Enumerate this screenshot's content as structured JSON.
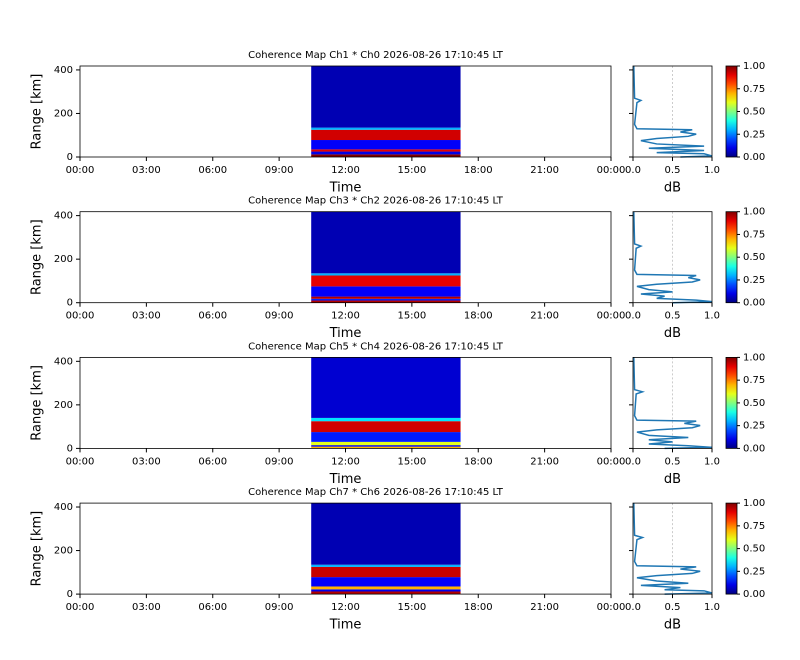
{
  "chart_data": [
    {
      "type": "heatmap",
      "title": "Coherence Map Ch1 * Ch0 2026-08-26 17:10:45 LT",
      "x_label": "Time",
      "y_label": "Range [km]",
      "xlim": [
        0,
        24
      ],
      "xticks": [
        {
          "value": 0,
          "label": "00:00"
        },
        {
          "value": 3,
          "label": "03:00"
        },
        {
          "value": 6,
          "label": "06:00"
        },
        {
          "value": 9,
          "label": "09:00"
        },
        {
          "value": 12,
          "label": "12:00"
        },
        {
          "value": 15,
          "label": "15:00"
        },
        {
          "value": 18,
          "label": "18:00"
        },
        {
          "value": 21,
          "label": "21:00"
        },
        {
          "value": 24,
          "label": "00:00"
        }
      ],
      "ylim": [
        0,
        418
      ],
      "yticks": [
        0,
        200,
        400
      ],
      "data_x": [
        10.45,
        17.2
      ],
      "bands": {
        "range": [
          0,
          12,
          25,
          35,
          78,
          125,
          135,
          418
        ],
        "values": [
          1.0,
          0.1,
          0.9,
          0.12,
          0.92,
          0.3,
          0.05
        ]
      },
      "colorbar": {
        "colormap": "jet",
        "lim": [
          0,
          1
        ],
        "ticks": [
          {
            "value": 0,
            "label": "0.00"
          },
          {
            "value": 0.25,
            "label": "0.25"
          },
          {
            "value": 0.5,
            "label": "0.50"
          },
          {
            "value": 0.75,
            "label": "0.75"
          },
          {
            "value": 1,
            "label": "1.00"
          }
        ]
      },
      "profile": {
        "x_label": "dB",
        "xlim": [
          0,
          1
        ],
        "xticks": [
          {
            "value": 0,
            "label": "0.0"
          },
          {
            "value": 0.5,
            "label": "0.5"
          },
          {
            "value": 1,
            "label": "1.0"
          }
        ],
        "vline": 0.5,
        "color": "#1f77b4",
        "range": [
          0,
          5,
          15,
          20,
          30,
          40,
          50,
          60,
          75,
          85,
          95,
          105,
          115,
          125,
          130,
          150,
          250,
          260,
          270,
          418
        ],
        "values": [
          0.6,
          1.0,
          0.9,
          0.3,
          0.9,
          0.2,
          0.9,
          0.3,
          0.1,
          0.3,
          0.7,
          0.8,
          0.6,
          0.75,
          0.05,
          0.02,
          0.05,
          0.1,
          0.02,
          0.01
        ]
      }
    },
    {
      "type": "heatmap",
      "title": "Coherence Map Ch3 * Ch2 2026-08-26 17:10:45 LT",
      "x_label": "Time",
      "y_label": "Range [km]",
      "xlim": [
        0,
        24
      ],
      "xticks": [
        {
          "value": 0,
          "label": "00:00"
        },
        {
          "value": 3,
          "label": "03:00"
        },
        {
          "value": 6,
          "label": "06:00"
        },
        {
          "value": 9,
          "label": "09:00"
        },
        {
          "value": 12,
          "label": "12:00"
        },
        {
          "value": 15,
          "label": "15:00"
        },
        {
          "value": 18,
          "label": "18:00"
        },
        {
          "value": 21,
          "label": "21:00"
        },
        {
          "value": 24,
          "label": "00:00"
        }
      ],
      "ylim": [
        0,
        418
      ],
      "yticks": [
        0,
        200,
        400
      ],
      "data_x": [
        10.45,
        17.2
      ],
      "bands": {
        "range": [
          0,
          10,
          18,
          28,
          75,
          125,
          135,
          418
        ],
        "values": [
          0.95,
          0.15,
          0.95,
          0.12,
          0.9,
          0.3,
          0.05
        ]
      },
      "colorbar": {
        "colormap": "jet",
        "lim": [
          0,
          1
        ],
        "ticks": [
          {
            "value": 0,
            "label": "0.00"
          },
          {
            "value": 0.25,
            "label": "0.25"
          },
          {
            "value": 0.5,
            "label": "0.50"
          },
          {
            "value": 0.75,
            "label": "0.75"
          },
          {
            "value": 1,
            "label": "1.00"
          }
        ]
      },
      "profile": {
        "x_label": "dB",
        "xlim": [
          0,
          1
        ],
        "xticks": [
          {
            "value": 0,
            "label": "0.0"
          },
          {
            "value": 0.5,
            "label": "0.5"
          },
          {
            "value": 1,
            "label": "1.0"
          }
        ],
        "vline": 0.5,
        "color": "#1f77b4",
        "range": [
          0,
          5,
          12,
          20,
          30,
          40,
          50,
          60,
          75,
          85,
          95,
          105,
          115,
          125,
          130,
          150,
          250,
          260,
          270,
          418
        ],
        "values": [
          0.5,
          1.0,
          0.8,
          0.3,
          0.4,
          0.1,
          0.5,
          0.2,
          0.05,
          0.3,
          0.75,
          0.85,
          0.7,
          0.8,
          0.05,
          0.02,
          0.04,
          0.1,
          0.02,
          0.01
        ]
      }
    },
    {
      "type": "heatmap",
      "title": "Coherence Map Ch5 * Ch4 2026-08-26 17:10:45 LT",
      "x_label": "Time",
      "y_label": "Range [km]",
      "xlim": [
        0,
        24
      ],
      "xticks": [
        {
          "value": 0,
          "label": "00:00"
        },
        {
          "value": 3,
          "label": "03:00"
        },
        {
          "value": 6,
          "label": "06:00"
        },
        {
          "value": 9,
          "label": "09:00"
        },
        {
          "value": 12,
          "label": "12:00"
        },
        {
          "value": 15,
          "label": "15:00"
        },
        {
          "value": 18,
          "label": "18:00"
        },
        {
          "value": 21,
          "label": "21:00"
        },
        {
          "value": 24,
          "label": "00:00"
        }
      ],
      "ylim": [
        0,
        418
      ],
      "yticks": [
        0,
        200,
        400
      ],
      "data_x": [
        10.45,
        17.2
      ],
      "bands": {
        "range": [
          0,
          8,
          15,
          30,
          75,
          125,
          140,
          418
        ],
        "values": [
          0.7,
          0.1,
          0.6,
          0.15,
          0.92,
          0.35,
          0.08
        ]
      },
      "colorbar": {
        "colormap": "jet",
        "lim": [
          0,
          1
        ],
        "ticks": [
          {
            "value": 0,
            "label": "0.00"
          },
          {
            "value": 0.25,
            "label": "0.25"
          },
          {
            "value": 0.5,
            "label": "0.50"
          },
          {
            "value": 0.75,
            "label": "0.75"
          },
          {
            "value": 1,
            "label": "1.00"
          }
        ]
      },
      "profile": {
        "x_label": "dB",
        "xlim": [
          0,
          1
        ],
        "xticks": [
          {
            "value": 0,
            "label": "0.0"
          },
          {
            "value": 0.5,
            "label": "0.5"
          },
          {
            "value": 1,
            "label": "1.0"
          }
        ],
        "vline": 0.5,
        "color": "#1f77b4",
        "range": [
          0,
          5,
          12,
          20,
          30,
          40,
          50,
          60,
          75,
          85,
          95,
          105,
          115,
          125,
          130,
          150,
          250,
          260,
          270,
          418
        ],
        "values": [
          0.4,
          1.0,
          0.7,
          0.2,
          0.5,
          0.2,
          0.7,
          0.2,
          0.05,
          0.3,
          0.75,
          0.85,
          0.65,
          0.8,
          0.05,
          0.02,
          0.04,
          0.12,
          0.02,
          0.01
        ]
      }
    },
    {
      "type": "heatmap",
      "title": "Coherence Map Ch7 * Ch6 2026-08-26 17:10:45 LT",
      "x_label": "Time",
      "y_label": "Range [km]",
      "xlim": [
        0,
        24
      ],
      "xticks": [
        {
          "value": 0,
          "label": "00:00"
        },
        {
          "value": 3,
          "label": "03:00"
        },
        {
          "value": 6,
          "label": "06:00"
        },
        {
          "value": 9,
          "label": "09:00"
        },
        {
          "value": 12,
          "label": "12:00"
        },
        {
          "value": 15,
          "label": "15:00"
        },
        {
          "value": 18,
          "label": "18:00"
        },
        {
          "value": 21,
          "label": "21:00"
        },
        {
          "value": 24,
          "label": "00:00"
        }
      ],
      "ylim": [
        0,
        418
      ],
      "yticks": [
        0,
        200,
        400
      ],
      "data_x": [
        10.45,
        17.2
      ],
      "bands": {
        "range": [
          0,
          12,
          22,
          35,
          78,
          125,
          135,
          418
        ],
        "values": [
          0.95,
          0.1,
          0.7,
          0.12,
          0.93,
          0.3,
          0.05
        ]
      },
      "colorbar": {
        "colormap": "jet",
        "lim": [
          0,
          1
        ],
        "ticks": [
          {
            "value": 0,
            "label": "0.00"
          },
          {
            "value": 0.25,
            "label": "0.25"
          },
          {
            "value": 0.5,
            "label": "0.50"
          },
          {
            "value": 0.75,
            "label": "0.75"
          },
          {
            "value": 1,
            "label": "1.00"
          }
        ]
      },
      "profile": {
        "x_label": "dB",
        "xlim": [
          0,
          1
        ],
        "xticks": [
          {
            "value": 0,
            "label": "0.0"
          },
          {
            "value": 0.5,
            "label": "0.5"
          },
          {
            "value": 1,
            "label": "1.0"
          }
        ],
        "vline": 0.5,
        "color": "#1f77b4",
        "range": [
          0,
          5,
          15,
          20,
          30,
          40,
          50,
          60,
          75,
          85,
          95,
          105,
          115,
          125,
          130,
          150,
          250,
          260,
          270,
          418
        ],
        "values": [
          0.4,
          1.0,
          0.9,
          0.4,
          0.6,
          0.1,
          0.7,
          0.3,
          0.05,
          0.3,
          0.75,
          0.85,
          0.6,
          0.8,
          0.05,
          0.02,
          0.05,
          0.12,
          0.02,
          0.01
        ]
      }
    }
  ]
}
